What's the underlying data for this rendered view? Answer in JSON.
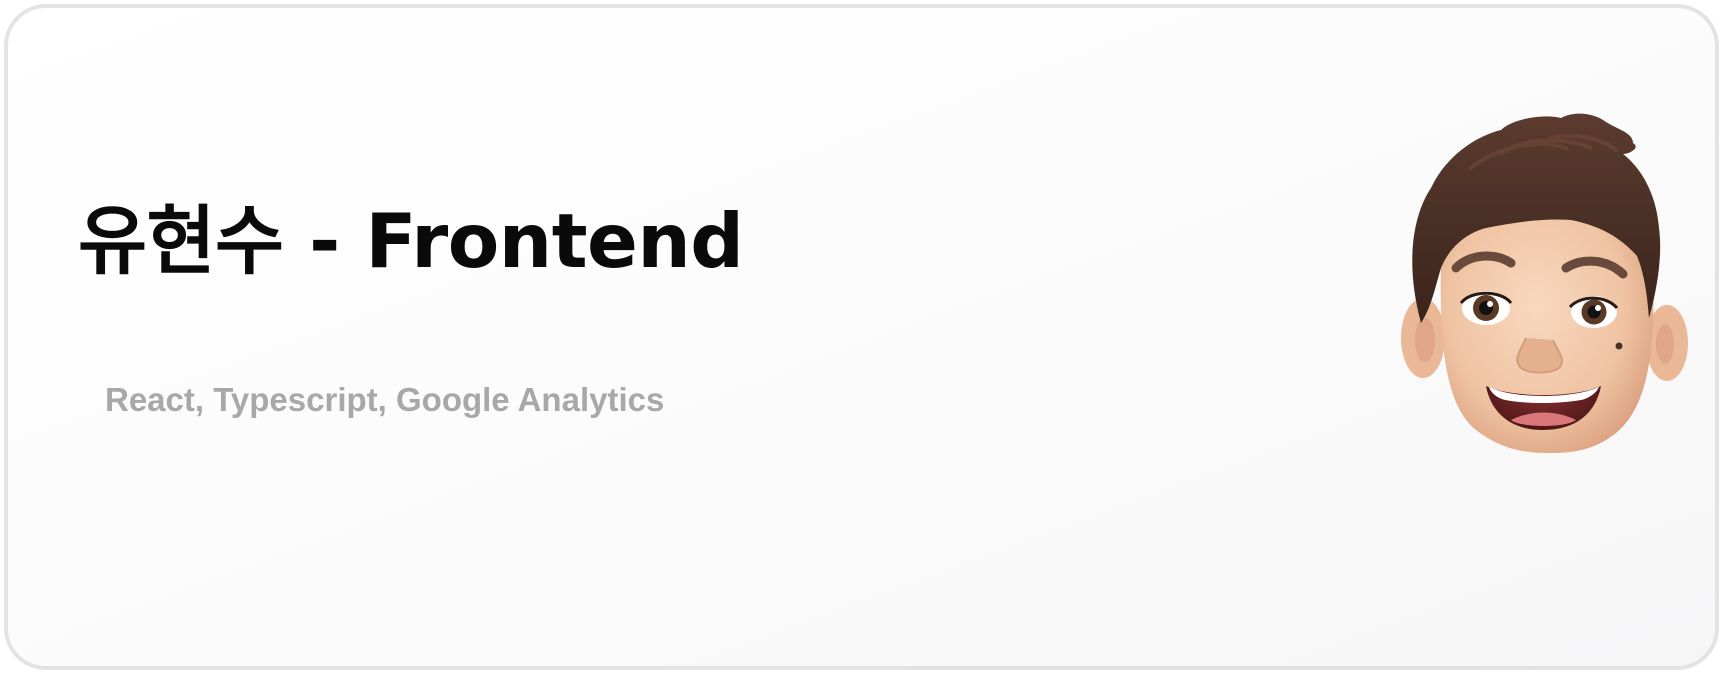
{
  "profile": {
    "title": "유현수 - Frontend",
    "subtitle": "React, Typescript, Google Analytics",
    "avatar_icon": "memoji-avatar-icon"
  },
  "colors": {
    "title": "#0a0a0a",
    "subtitle": "#a8a8a8",
    "card_border": "#e3e3e3",
    "card_background": "#fbfbfb",
    "hair": "#4a3128",
    "skin": "#f2c8a8"
  }
}
